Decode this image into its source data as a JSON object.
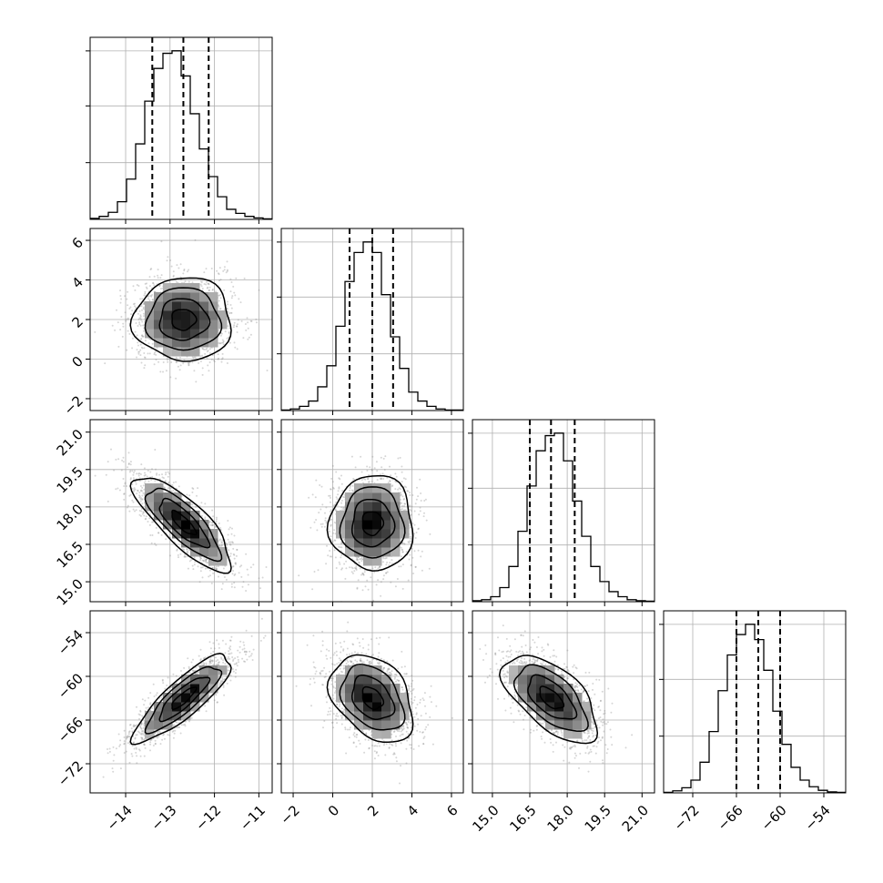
{
  "chart_data": {
    "type": "corner",
    "params": [
      {
        "mean": -12.7,
        "sd": 0.55,
        "quantiles": [
          -13.4,
          -12.7,
          -12.13
        ],
        "range": [
          -14.8,
          -10.7
        ],
        "ticks": [
          -14,
          -13,
          -12,
          -11
        ],
        "tick_labels": [
          "−14",
          "−13",
          "−12",
          "−11"
        ]
      },
      {
        "mean": 2.0,
        "sd": 1.05,
        "quantiles": [
          0.85,
          2.0,
          3.05
        ],
        "range": [
          -2.6,
          6.6
        ],
        "ticks": [
          -2,
          0,
          2,
          4,
          6
        ],
        "tick_labels": [
          "−2",
          "0",
          "2",
          "4",
          "6"
        ]
      },
      {
        "mean": 17.35,
        "sd": 0.95,
        "quantiles": [
          16.5,
          17.35,
          18.3
        ],
        "range": [
          14.2,
          21.5
        ],
        "ticks": [
          15.0,
          16.5,
          18.0,
          19.5,
          21.0
        ],
        "tick_labels": [
          "15.0",
          "16.5",
          "18.0",
          "19.5",
          "21.0"
        ]
      },
      {
        "mean": -63.0,
        "sd": 3.0,
        "quantiles": [
          -66.0,
          -63.0,
          -60.0
        ],
        "range": [
          -76,
          -51
        ],
        "ticks": [
          -72,
          -66,
          -60,
          -54
        ],
        "tick_labels": [
          "−72",
          "−66",
          "−60",
          "−54"
        ]
      }
    ],
    "correlations": [
      [
        1.0,
        0.0,
        -0.8,
        0.85
      ],
      [
        0.0,
        1.0,
        0.0,
        -0.35
      ],
      [
        -0.8,
        0.0,
        1.0,
        -0.6
      ],
      [
        0.85,
        -0.35,
        -0.6,
        1.0
      ]
    ],
    "histograms": [
      {
        "bins": 20,
        "counts": [
          2,
          6,
          14,
          35,
          80,
          150,
          235,
          300,
          330,
          335,
          285,
          210,
          140,
          85,
          45,
          20,
          12,
          6,
          3,
          1
        ]
      },
      {
        "bins": 20,
        "counts": [
          1,
          3,
          8,
          18,
          45,
          85,
          160,
          245,
          300,
          320,
          300,
          220,
          140,
          80,
          35,
          18,
          8,
          3,
          1,
          1
        ]
      },
      {
        "bins": 20,
        "counts": [
          2,
          4,
          10,
          28,
          70,
          140,
          230,
          300,
          330,
          335,
          280,
          200,
          130,
          70,
          40,
          20,
          10,
          4,
          2,
          1
        ]
      },
      {
        "bins": 20,
        "counts": [
          1,
          4,
          10,
          25,
          60,
          120,
          200,
          270,
          310,
          330,
          300,
          240,
          160,
          95,
          50,
          25,
          12,
          5,
          2,
          1
        ]
      }
    ],
    "contour_levels_sigma": [
      0.5,
      1.0,
      1.5,
      2.0
    ],
    "grid": true
  }
}
